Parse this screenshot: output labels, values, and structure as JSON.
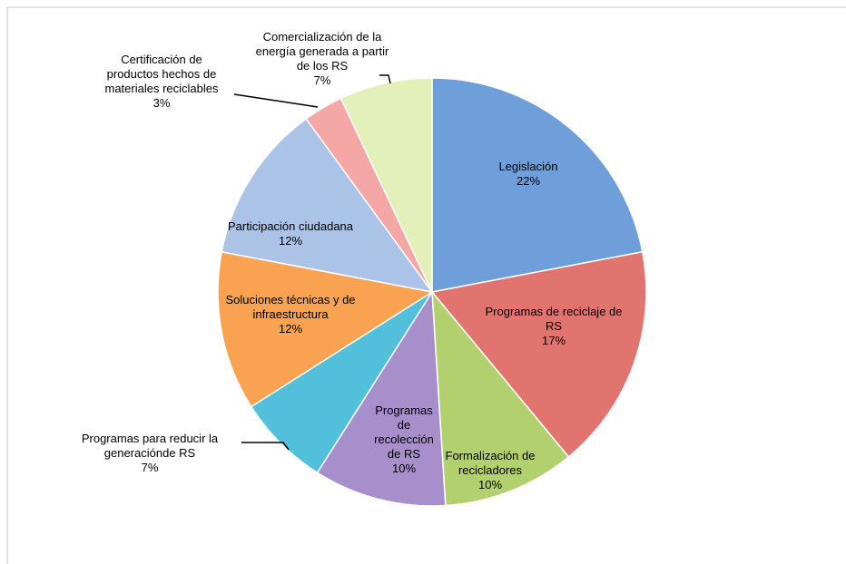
{
  "chart_data": {
    "type": "pie",
    "categories": [
      "Legislación",
      "Programas de reciclaje de RS",
      "Formalización de recicladores",
      "Programas de recolección de RS",
      "Programas para reducir la generaciónde RS",
      "Soluciones técnicas y de infraestructura",
      "Participación ciudadana",
      "Certificación de productos hechos de materiales reciclables",
      "Comercialización de la energía generada a partir de los RS"
    ],
    "values": [
      22,
      17,
      10,
      10,
      7,
      12,
      12,
      3,
      7
    ],
    "value_labels": [
      "22%",
      "17%",
      "10%",
      "10%",
      "7%",
      "12%",
      "12%",
      "3%",
      "7%"
    ],
    "colors": [
      "#6f9fda",
      "#e27470",
      "#b3d06e",
      "#a78fcc",
      "#52bfdb",
      "#f8a252",
      "#abc3e7",
      "#f5a7a6",
      "#e3f0b9"
    ]
  }
}
